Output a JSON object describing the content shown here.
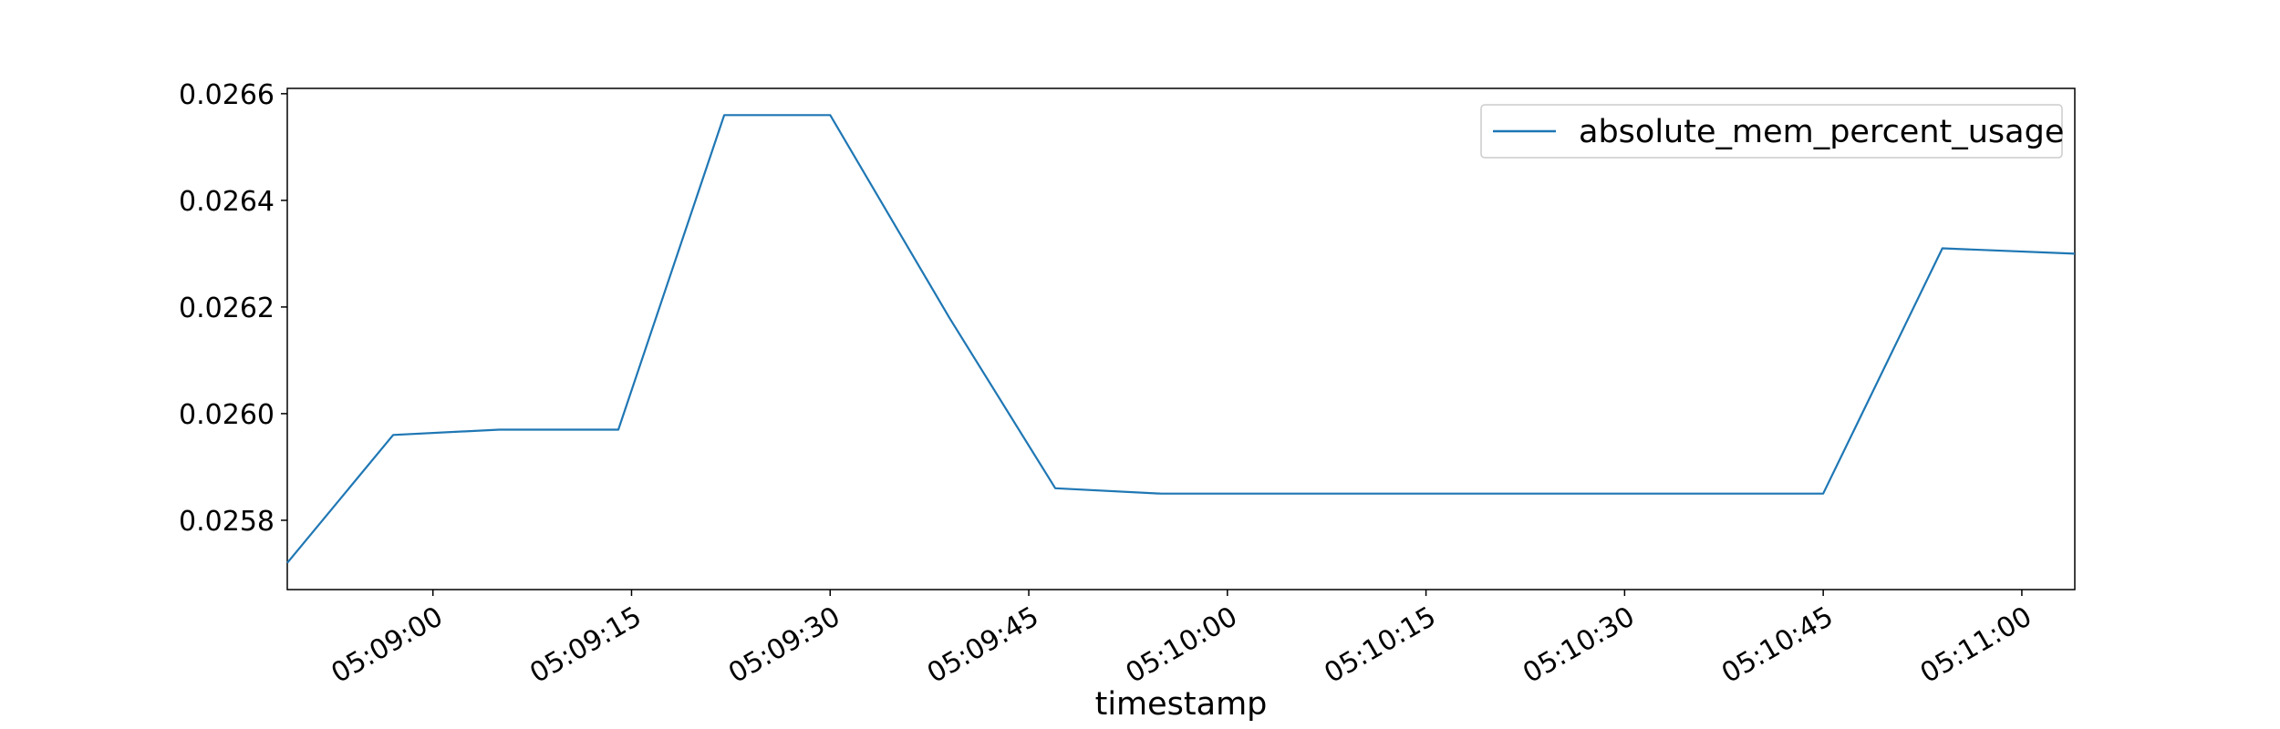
{
  "chart_data": {
    "type": "line",
    "title": "",
    "xlabel": "timestamp",
    "ylabel": "",
    "x_tick_labels": [
      "05:09:00",
      "05:09:15",
      "05:09:30",
      "05:09:45",
      "05:10:00",
      "05:10:15",
      "05:10:30",
      "05:10:45",
      "05:11:00"
    ],
    "y_tick_labels": [
      "0.0258",
      "0.0260",
      "0.0262",
      "0.0264",
      "0.0266"
    ],
    "y_ticks": [
      0.0258,
      0.026,
      0.0262,
      0.0264,
      0.0266
    ],
    "xlim": [
      "05:08:49",
      "05:11:04"
    ],
    "ylim": [
      0.02567,
      0.02661
    ],
    "grid": false,
    "legend_position": "upper right",
    "series": [
      {
        "name": "absolute_mem_percent_usage",
        "color": "#1f77b4",
        "x": [
          "05:08:49",
          "05:08:57",
          "05:09:05",
          "05:09:14",
          "05:09:22",
          "05:09:30",
          "05:09:39",
          "05:09:47",
          "05:09:55",
          "05:10:04",
          "05:10:12",
          "05:10:20",
          "05:10:29",
          "05:10:37",
          "05:10:45",
          "05:10:54",
          "05:11:04"
        ],
        "values": [
          0.02572,
          0.02596,
          0.02597,
          0.02597,
          0.02656,
          0.02656,
          0.02618,
          0.02586,
          0.02585,
          0.02585,
          0.02585,
          0.02585,
          0.02585,
          0.02585,
          0.02585,
          0.02631,
          0.0263
        ]
      }
    ]
  }
}
